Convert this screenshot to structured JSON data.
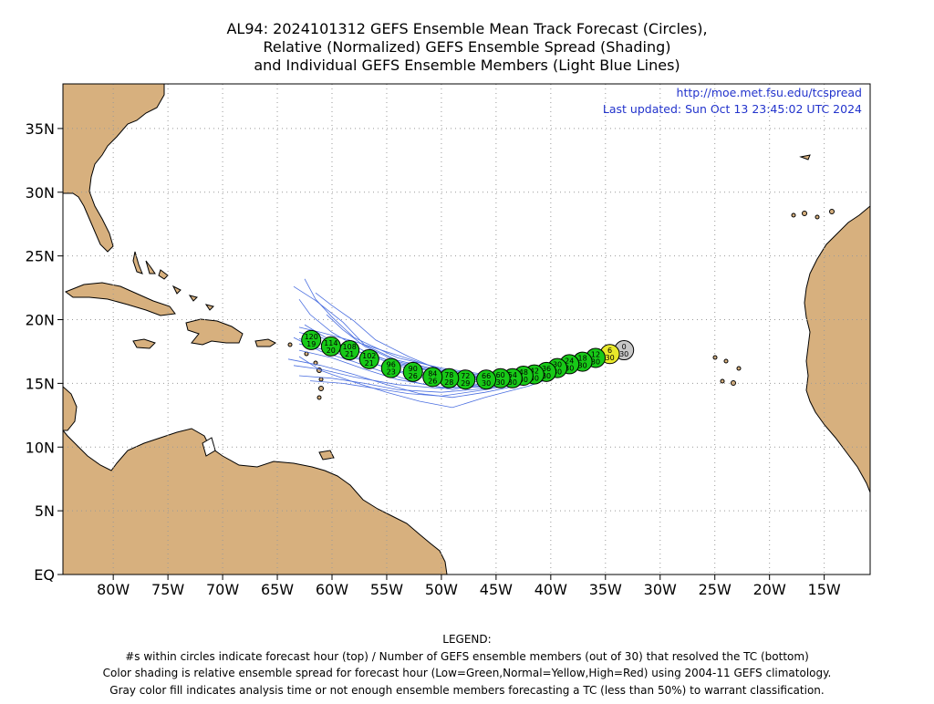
{
  "title": {
    "line1": "AL94: 2024101312 GEFS Ensemble Mean Track Forecast (Circles),",
    "line2": "Relative (Normalized) GEFS Ensemble Spread (Shading)",
    "line3": "and Individual GEFS Ensemble Members (Light Blue Lines)"
  },
  "info": {
    "url": "http://moe.met.fsu.edu/tcspread",
    "updated": "Last updated: Sun Oct 13 23:45:02 UTC 2024"
  },
  "axes": {
    "lat_ticks": [
      {
        "value": 0,
        "label": "EQ"
      },
      {
        "value": 5,
        "label": "5N"
      },
      {
        "value": 10,
        "label": "10N"
      },
      {
        "value": 15,
        "label": "15N"
      },
      {
        "value": 20,
        "label": "20N"
      },
      {
        "value": 25,
        "label": "25N"
      },
      {
        "value": 30,
        "label": "30N"
      },
      {
        "value": 35,
        "label": "35N"
      }
    ],
    "lon_ticks": [
      {
        "value": -80,
        "label": "80W"
      },
      {
        "value": -75,
        "label": "75W"
      },
      {
        "value": -70,
        "label": "70W"
      },
      {
        "value": -65,
        "label": "65W"
      },
      {
        "value": -60,
        "label": "60W"
      },
      {
        "value": -55,
        "label": "55W"
      },
      {
        "value": -50,
        "label": "50W"
      },
      {
        "value": -45,
        "label": "45W"
      },
      {
        "value": -40,
        "label": "40W"
      },
      {
        "value": -35,
        "label": "35W"
      },
      {
        "value": -30,
        "label": "30W"
      },
      {
        "value": -25,
        "label": "25W"
      },
      {
        "value": -20,
        "label": "20W"
      },
      {
        "value": -15,
        "label": "15W"
      }
    ],
    "lon_range": [
      -84.6,
      -10.8
    ],
    "lat_range": [
      0,
      38.5
    ],
    "grid": "dotted"
  },
  "colors": {
    "land": "#d7b07e",
    "member_lines": "#4a6ee0",
    "low_spread": "#17c917",
    "normal_spread": "#e8e82a",
    "analysis": "#c8c8c8",
    "url_text": "#2233cc"
  },
  "track": [
    {
      "hour": "0",
      "members": "30",
      "lon": -33.3,
      "lat": 17.6,
      "color": "analysis"
    },
    {
      "hour": "6",
      "members": "30",
      "lon": -34.6,
      "lat": 17.3,
      "color": "normal_spread"
    },
    {
      "hour": "12",
      "members": "30",
      "lon": -35.9,
      "lat": 17.0,
      "color": "low_spread"
    },
    {
      "hour": "18",
      "members": "30",
      "lon": -37.1,
      "lat": 16.7,
      "color": "low_spread"
    },
    {
      "hour": "24",
      "members": "30",
      "lon": -38.3,
      "lat": 16.5,
      "color": "low_spread"
    },
    {
      "hour": "30",
      "members": "30",
      "lon": -39.4,
      "lat": 16.2,
      "color": "low_spread"
    },
    {
      "hour": "36",
      "members": "30",
      "lon": -40.4,
      "lat": 15.9,
      "color": "low_spread"
    },
    {
      "hour": "42",
      "members": "30",
      "lon": -41.5,
      "lat": 15.7,
      "color": "low_spread"
    },
    {
      "hour": "48",
      "members": "30",
      "lon": -42.5,
      "lat": 15.6,
      "color": "low_spread"
    },
    {
      "hour": "54",
      "members": "30",
      "lon": -43.5,
      "lat": 15.4,
      "color": "low_spread"
    },
    {
      "hour": "60",
      "members": "30",
      "lon": -44.6,
      "lat": 15.4,
      "color": "low_spread"
    },
    {
      "hour": "66",
      "members": "30",
      "lon": -45.9,
      "lat": 15.3,
      "color": "low_spread"
    },
    {
      "hour": "72",
      "members": "29",
      "lon": -47.8,
      "lat": 15.3,
      "color": "low_spread"
    },
    {
      "hour": "78",
      "members": "28",
      "lon": -49.3,
      "lat": 15.4,
      "color": "low_spread"
    },
    {
      "hour": "84",
      "members": "26",
      "lon": -50.8,
      "lat": 15.5,
      "color": "low_spread"
    },
    {
      "hour": "90",
      "members": "26",
      "lon": -52.6,
      "lat": 15.9,
      "color": "low_spread"
    },
    {
      "hour": "96",
      "members": "23",
      "lon": -54.6,
      "lat": 16.2,
      "color": "low_spread"
    },
    {
      "hour": "102",
      "members": "21",
      "lon": -56.6,
      "lat": 16.9,
      "color": "low_spread"
    },
    {
      "hour": "108",
      "members": "21",
      "lon": -58.4,
      "lat": 17.6,
      "color": "low_spread"
    },
    {
      "hour": "114",
      "members": "20",
      "lon": -60.1,
      "lat": 17.9,
      "color": "low_spread"
    },
    {
      "hour": "120",
      "members": "19",
      "lon": -61.9,
      "lat": 18.4,
      "color": "low_spread"
    }
  ],
  "members": [
    [
      [
        -33.5,
        17.6
      ],
      [
        -38,
        16.9
      ],
      [
        -42,
        16.1
      ],
      [
        -46,
        15.7
      ],
      [
        -50,
        16.2
      ],
      [
        -54,
        17.0
      ],
      [
        -58,
        18.6
      ],
      [
        -60,
        20.2
      ],
      [
        -61.5,
        21.6
      ],
      [
        -62.5,
        23.2
      ]
    ],
    [
      [
        -33.5,
        17.6
      ],
      [
        -38,
        16.7
      ],
      [
        -42,
        15.9
      ],
      [
        -46,
        15.5
      ],
      [
        -50,
        16.0
      ],
      [
        -54,
        16.8
      ],
      [
        -57,
        18.0
      ],
      [
        -59,
        19.8
      ],
      [
        -61.5,
        21.5
      ],
      [
        -63.5,
        22.6
      ]
    ],
    [
      [
        -33.5,
        17.6
      ],
      [
        -38,
        16.6
      ],
      [
        -42,
        15.8
      ],
      [
        -46,
        15.4
      ],
      [
        -50,
        15.8
      ],
      [
        -54,
        16.5
      ],
      [
        -57,
        17.5
      ],
      [
        -60,
        19.0
      ],
      [
        -62,
        20.4
      ],
      [
        -63,
        21.6
      ]
    ],
    [
      [
        -33.5,
        17.6
      ],
      [
        -38,
        16.5
      ],
      [
        -42,
        15.6
      ],
      [
        -46,
        15.2
      ],
      [
        -50,
        15.5
      ],
      [
        -54,
        16.4
      ],
      [
        -57,
        17.3
      ],
      [
        -60,
        18.3
      ],
      [
        -62.5,
        19.6
      ]
    ],
    [
      [
        -33.5,
        17.6
      ],
      [
        -38,
        16.4
      ],
      [
        -42,
        15.4
      ],
      [
        -46,
        14.9
      ],
      [
        -50,
        15.1
      ],
      [
        -54,
        15.9
      ],
      [
        -57,
        16.8
      ],
      [
        -60,
        17.9
      ],
      [
        -63,
        18.5
      ]
    ],
    [
      [
        -33.5,
        17.6
      ],
      [
        -38,
        16.3
      ],
      [
        -42,
        15.3
      ],
      [
        -46,
        14.7
      ],
      [
        -50,
        14.7
      ],
      [
        -54,
        15.3
      ],
      [
        -57,
        16.1
      ],
      [
        -60,
        17.0
      ],
      [
        -63,
        17.6
      ]
    ],
    [
      [
        -33.5,
        17.6
      ],
      [
        -38,
        16.1
      ],
      [
        -42,
        15.0
      ],
      [
        -46,
        14.3
      ],
      [
        -49,
        13.9
      ],
      [
        -52,
        14.2
      ],
      [
        -55,
        14.9
      ],
      [
        -58,
        15.7
      ],
      [
        -61,
        16.4
      ],
      [
        -64,
        16.9
      ]
    ],
    [
      [
        -33.5,
        17.6
      ],
      [
        -38,
        16.0
      ],
      [
        -42,
        14.8
      ],
      [
        -46,
        13.9
      ],
      [
        -49,
        13.1
      ],
      [
        -52,
        13.6
      ],
      [
        -55,
        14.3
      ],
      [
        -58,
        15.1
      ],
      [
        -61,
        16.0
      ],
      [
        -63,
        17.1
      ]
    ],
    [
      [
        -33.5,
        17.6
      ],
      [
        -38,
        16.2
      ],
      [
        -42,
        15.2
      ],
      [
        -46,
        14.6
      ],
      [
        -50,
        14.3
      ],
      [
        -54,
        14.5
      ],
      [
        -57,
        15.0
      ],
      [
        -60,
        15.4
      ],
      [
        -63,
        15.6
      ]
    ],
    [
      [
        -33.5,
        17.6
      ],
      [
        -38,
        16.6
      ],
      [
        -42,
        15.9
      ],
      [
        -46,
        15.4
      ],
      [
        -50,
        16.0
      ],
      [
        -53,
        17.1
      ],
      [
        -56,
        18.4
      ],
      [
        -58,
        19.9
      ],
      [
        -60,
        21.1
      ],
      [
        -61.5,
        22.1
      ]
    ],
    [
      [
        -33.5,
        17.6
      ],
      [
        -38,
        16.5
      ],
      [
        -42,
        15.7
      ],
      [
        -46,
        15.2
      ],
      [
        -50,
        15.8
      ],
      [
        -54,
        16.6
      ],
      [
        -58,
        17.6
      ],
      [
        -61,
        18.6
      ],
      [
        -63,
        19.0
      ]
    ],
    [
      [
        -33.5,
        17.6
      ],
      [
        -38,
        16.3
      ],
      [
        -42,
        15.4
      ],
      [
        -46,
        14.8
      ],
      [
        -50,
        14.6
      ],
      [
        -54,
        14.9
      ],
      [
        -58,
        15.5
      ],
      [
        -61,
        16.1
      ],
      [
        -63.5,
        16.4
      ]
    ],
    [
      [
        -33.5,
        17.6
      ],
      [
        -38,
        16.4
      ],
      [
        -42,
        15.5
      ],
      [
        -46,
        15.1
      ],
      [
        -50,
        15.3
      ],
      [
        -54,
        16.0
      ],
      [
        -58,
        17.0
      ],
      [
        -61,
        17.7
      ],
      [
        -63,
        18.1
      ]
    ],
    [
      [
        -33.5,
        17.6
      ],
      [
        -38,
        16.6
      ],
      [
        -42,
        15.8
      ],
      [
        -46,
        15.3
      ],
      [
        -50,
        15.9
      ],
      [
        -54,
        16.7
      ],
      [
        -57,
        17.9
      ],
      [
        -59,
        19.2
      ],
      [
        -60.5,
        20.4
      ]
    ],
    [
      [
        -33.5,
        17.6
      ],
      [
        -38,
        16.5
      ],
      [
        -42,
        15.6
      ],
      [
        -46,
        15.0
      ],
      [
        -49,
        14.5
      ],
      [
        -52,
        15.0
      ],
      [
        -55,
        15.8
      ],
      [
        -58,
        16.7
      ],
      [
        -61,
        17.5
      ],
      [
        -63.5,
        18.6
      ]
    ],
    [
      [
        -33.5,
        17.6
      ],
      [
        -38,
        16.7
      ],
      [
        -42,
        15.9
      ],
      [
        -46,
        15.6
      ],
      [
        -50,
        16.1
      ],
      [
        -54,
        17.2
      ],
      [
        -58,
        18.3
      ],
      [
        -61,
        19.0
      ],
      [
        -63,
        19.4
      ]
    ],
    [
      [
        -33.5,
        17.6
      ],
      [
        -38,
        16.2
      ],
      [
        -42,
        15.1
      ],
      [
        -46,
        14.5
      ],
      [
        -50,
        14.0
      ],
      [
        -53,
        14.2
      ],
      [
        -56,
        14.6
      ],
      [
        -59,
        15.0
      ],
      [
        -62,
        15.2
      ]
    ]
  ],
  "legend": {
    "heading": "LEGEND:",
    "line1": "#s within circles indicate forecast hour (top) / Number of GEFS ensemble members (out of 30) that resolved the TC (bottom)",
    "line2": "Color shading is relative ensemble spread for forecast hour (Low=Green,Normal=Yellow,High=Red) using 2004-11 GEFS climatology.",
    "line3": "Gray color fill indicates analysis time or not enough ensemble members forecasting a TC (less than 50%) to warrant classification."
  }
}
